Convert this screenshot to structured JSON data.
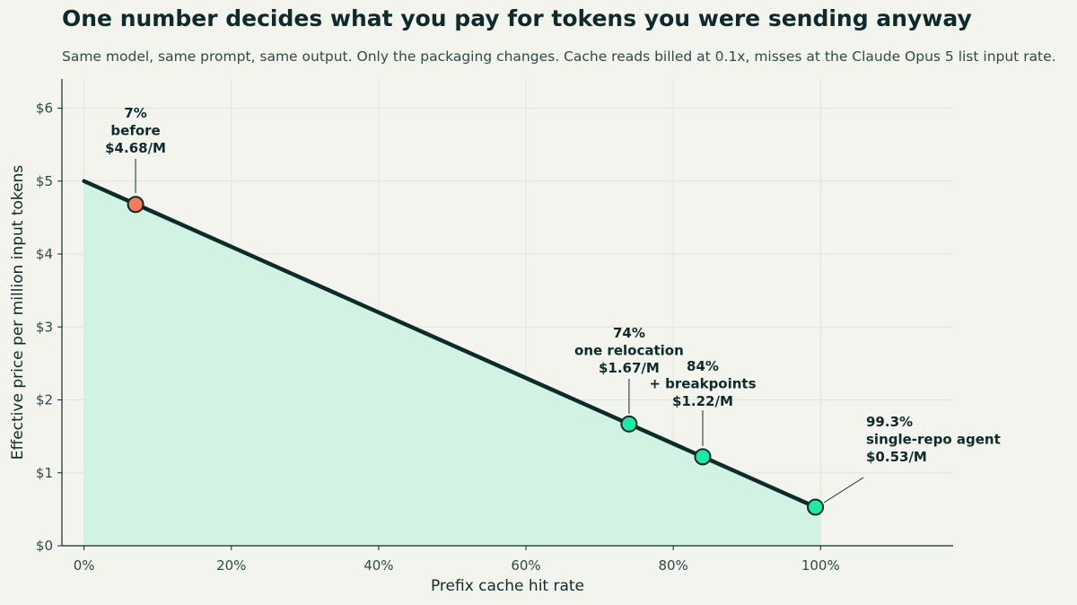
{
  "title": "One number decides what you pay for tokens you were sending anyway",
  "subtitle": "Same model, same prompt, same output. Only the packaging changes. Cache reads billed at 0.1x, misses at the Claude Opus 5 list input rate.",
  "colors": {
    "background": "#f4f4ef",
    "line": "#0f2a2a",
    "fill": "#d2f2e4",
    "before_marker": "#f47c5c",
    "after_marker": "#1de8a6",
    "grid": "#e2e3dc"
  },
  "chart_data": {
    "type": "line",
    "xlabel": "Prefix cache hit rate",
    "ylabel": "Effective price per million input tokens",
    "xlim": [
      -3,
      118
    ],
    "ylim": [
      0,
      6.4
    ],
    "x_ticks": [
      0,
      20,
      40,
      60,
      80,
      100
    ],
    "x_tick_labels": [
      "0%",
      "20%",
      "40%",
      "60%",
      "80%",
      "100%"
    ],
    "y_ticks": [
      0,
      1,
      2,
      3,
      4,
      5,
      6
    ],
    "y_tick_labels": [
      "$0",
      "$1",
      "$2",
      "$3",
      "$4",
      "$5",
      "$6"
    ],
    "grid": true,
    "series": [
      {
        "x": [
          0,
          100
        ],
        "y": [
          5.0,
          0.5
        ],
        "filled": true
      }
    ],
    "points": [
      {
        "x": 7,
        "y": 4.68,
        "kind": "before",
        "lines": [
          "7%",
          "before",
          "$4.68/M"
        ]
      },
      {
        "x": 74,
        "y": 1.67,
        "kind": "after",
        "lines": [
          "74%",
          "one relocation",
          "$1.67/M"
        ]
      },
      {
        "x": 84,
        "y": 1.22,
        "kind": "after",
        "lines": [
          "84%",
          "+ breakpoints",
          "$1.22/M"
        ]
      },
      {
        "x": 99.3,
        "y": 0.53,
        "kind": "after",
        "lines": [
          "99.3%",
          "single-repo agent",
          "$0.53/M"
        ]
      }
    ]
  }
}
